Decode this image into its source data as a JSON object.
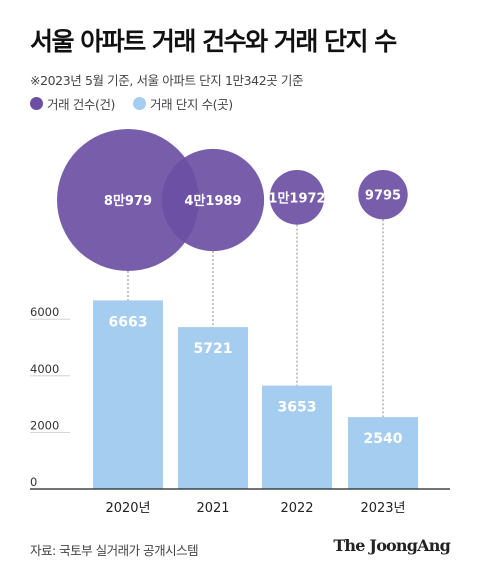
{
  "title": "서울 아파트 거래 건수와 거래 단지 수",
  "subtitle": "※2023년 5월 기준, 서울 아파트 단지 1만342곳 기준",
  "legend": [
    {
      "label": "거래 건수(건)",
      "color": "#6b4fa3"
    },
    {
      "label": "거래 단지 수(곳)",
      "color": "#a5cdf0"
    }
  ],
  "source": "자료: 국토부 실거래가 공개시스템",
  "brand": "The JoongAng",
  "colors": {
    "deals": "#6b4fa3",
    "complexes": "#a5cdf0",
    "axis": "#222222",
    "grid": "#bbbbbb"
  },
  "chart_data": {
    "type": "bar",
    "categories": [
      "2020년",
      "2021",
      "2022",
      "2023년"
    ],
    "series": [
      {
        "name": "거래 단지 수(곳)",
        "values": [
          6663,
          5721,
          3653,
          2540
        ],
        "labels": [
          "6663",
          "5721",
          "3653",
          "2540"
        ],
        "kind": "bar"
      },
      {
        "name": "거래 건수(건)",
        "values": [
          80979,
          41989,
          11972,
          9795
        ],
        "labels": [
          "8만979",
          "4만1989",
          "1만1972",
          "9795"
        ],
        "kind": "bubble"
      }
    ],
    "yticks": [
      0,
      2000,
      4000,
      6000
    ],
    "ylim": [
      0,
      7000
    ],
    "grid": false
  }
}
